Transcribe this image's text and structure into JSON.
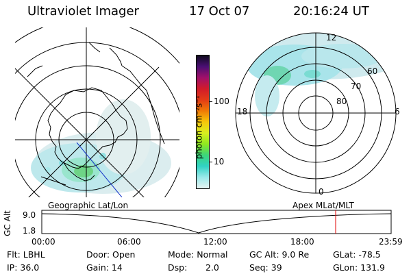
{
  "header": {
    "instrument": "Ultraviolet Imager",
    "date": "17 Oct 07",
    "time": "20:16:24 UT"
  },
  "colorbar": {
    "label": "photon cm⁻²s⁻¹",
    "ticks": [
      "100",
      "10"
    ],
    "colors": [
      "#0f0b1e",
      "#4a0f73",
      "#a0106a",
      "#d11b2a",
      "#e33b16",
      "#f07a06",
      "#f6c70a",
      "#d9ef20",
      "#8fe820",
      "#3cd67a",
      "#31d3c4",
      "#9be9ea",
      "#e6f4f2"
    ]
  },
  "geo_panel": {
    "label": "Geographic Lat/Lon"
  },
  "mag_panel": {
    "label": "Apex MLat/MLT",
    "mlt_labels": {
      "top": "12",
      "bottom": "0",
      "left": "18",
      "right": "6"
    },
    "lat_labels": [
      "60",
      "70",
      "80"
    ]
  },
  "altitude_plot": {
    "ylabel": "GC Alt",
    "y_ticks": [
      "9.0",
      "1.8"
    ],
    "x_ticks": [
      "00:00",
      "06:00",
      "12:00",
      "18:00",
      "23:59"
    ],
    "marker_color": "#e00000"
  },
  "info": {
    "row1": {
      "flt": "Flt: LBHL",
      "door": "Door: Open",
      "mode": "Mode: Normal",
      "gcalt": "GC Alt: 9.0 Re",
      "glat": "GLat: -78.5"
    },
    "row2": {
      "ip": "IP: 36.0",
      "gain": "Gain: 14",
      "dsp_label": "Dsp:",
      "dsp_value": "2.0",
      "seq": "Seq: 39",
      "glon": "GLon: 131.9"
    }
  }
}
